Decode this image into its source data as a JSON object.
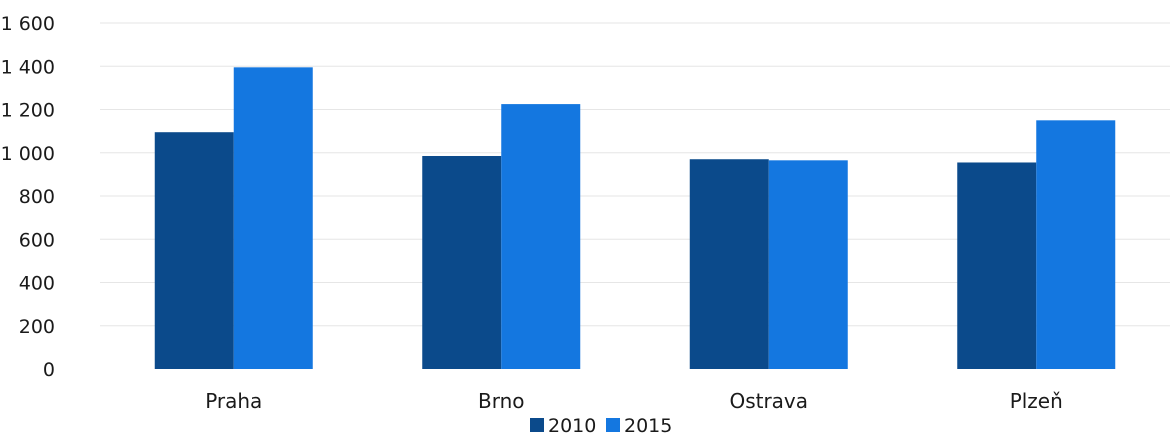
{
  "chart_data": {
    "type": "bar",
    "title": "",
    "xlabel": "",
    "ylabel": "",
    "categories": [
      "Praha",
      "Brno",
      "Ostrava",
      "Plzeň"
    ],
    "series": [
      {
        "name": "2010",
        "values": [
          1095,
          985,
          970,
          955
        ],
        "color": "#0b4a8b"
      },
      {
        "name": "2015",
        "values": [
          1395,
          1225,
          965,
          1150
        ],
        "color": "#1477e0"
      }
    ],
    "ylim": [
      0,
      1600
    ],
    "yticks": [
      "0",
      "200",
      "400",
      "600",
      "800",
      "1 000",
      "1 200",
      "1 400",
      "1 600"
    ],
    "ytick_values": [
      0,
      200,
      400,
      600,
      800,
      1000,
      1200,
      1400,
      1600
    ],
    "grid": true,
    "legend_position": "bottom-center"
  }
}
